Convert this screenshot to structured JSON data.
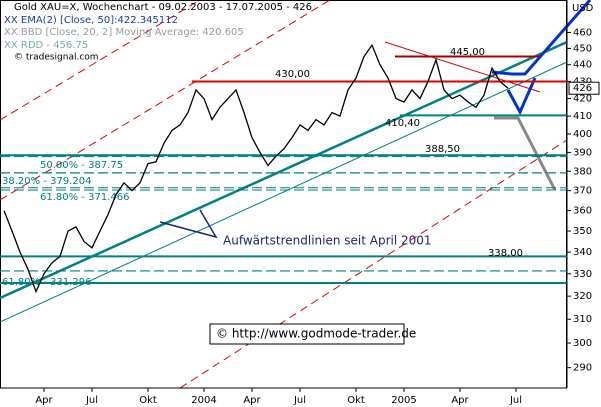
{
  "chart_data": {
    "type": "line",
    "title": "Gold XAU=X, Wochenchart - 09.02.2003 - 17.07.2005 - 426",
    "legend_lines": [
      "XX EMA(2) [Close, 50]:422.345112",
      "XX BBD [Close, 20, 2] Moving Average: 420.605",
      "XX RDD - 456.75"
    ],
    "source": "© tradesignal.com",
    "annotation": "Aufwärtstrendlinien seit April 2001",
    "copyright": "© http://www.godmode-trader.de",
    "y_unit": "USD",
    "log_scale": true,
    "ylim": [
      282,
      481
    ],
    "yticks": [
      290,
      300,
      310,
      320,
      330,
      340,
      350,
      360,
      370,
      380,
      390,
      400,
      410,
      420,
      430,
      440,
      450,
      460
    ],
    "last_price": 426,
    "categories": [
      null,
      null,
      null,
      null,
      null,
      "Apr",
      null,
      null,
      null,
      null,
      null,
      "Jul",
      null,
      null,
      null,
      null,
      null,
      null,
      "Okt",
      null,
      null,
      null,
      null,
      null,
      null,
      "2004",
      null,
      null,
      null,
      null,
      null,
      "Apr",
      null,
      null,
      null,
      null,
      null,
      "Jul",
      null,
      null,
      null,
      null,
      null,
      null,
      "Okt",
      null,
      null,
      null,
      null,
      null,
      "2005",
      null,
      null,
      null,
      null,
      null,
      null,
      "Apr",
      null,
      null,
      null,
      null,
      null,
      null,
      "Jul"
    ],
    "series": [
      {
        "name": "Gold",
        "color": "#000000",
        "values": [
          360,
          350,
          340,
          332,
          322,
          330,
          335,
          338,
          350,
          352,
          345,
          342,
          350,
          358,
          368,
          374,
          370,
          374,
          384,
          385,
          395,
          402,
          405,
          412,
          425,
          420,
          408,
          415,
          420,
          425,
          412,
          398,
          390,
          383,
          388,
          392,
          398,
          405,
          402,
          408,
          405,
          412,
          410,
          425,
          432,
          445,
          452,
          440,
          432,
          420,
          418,
          425,
          420,
          430,
          443,
          425,
          420,
          422,
          418,
          415,
          422,
          438,
          430,
          426,
          null
        ]
      }
    ],
    "levels": [
      {
        "value": 445,
        "label": "445,00",
        "color": "#a00000"
      },
      {
        "value": 430,
        "label": "430,00",
        "color": "#e00000"
      },
      {
        "value": 410.4,
        "label": "410,40",
        "color": "#008080"
      },
      {
        "value": 388.5,
        "label": "388,50",
        "color": "#008080"
      },
      {
        "value": 338,
        "label": "338,00",
        "color": "#008080"
      },
      {
        "value": 387.75,
        "label": "50.00% - 387.75",
        "color": "#008080"
      },
      {
        "value": 379.204,
        "label": "38.20% - 379.204",
        "color": "#008080"
      },
      {
        "value": 371.466,
        "label": "61.80% - 371.466",
        "color": "#008080"
      },
      {
        "value": 331.296,
        "label": "61.80% - 331.296",
        "color": "#008080"
      }
    ]
  }
}
